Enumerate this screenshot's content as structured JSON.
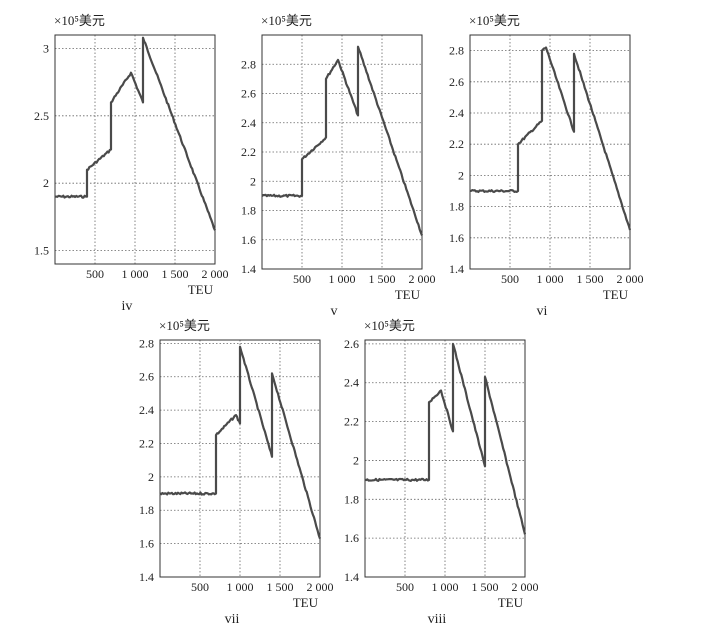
{
  "chart_data": [
    {
      "type": "line",
      "caption": "iv",
      "ylabel": "×10⁵美元",
      "xlabel": "TEU",
      "xlim": [
        0,
        2000
      ],
      "ylim": [
        1.4,
        3.1
      ],
      "xticks": [
        500,
        1000,
        1500,
        2000
      ],
      "xtick_labels": [
        "500",
        "1 000",
        "1 500",
        "2 000"
      ],
      "yticks": [
        1.5,
        2,
        2.5,
        3
      ],
      "ytick_labels": [
        "1.5",
        "2",
        "2.5",
        "3"
      ],
      "grid": true,
      "series": [
        {
          "x": [
            0,
            400,
            400,
            700,
            700,
            950,
            1100,
            1100,
            2000
          ],
          "y": [
            1.9,
            1.9,
            2.1,
            2.25,
            2.6,
            2.82,
            2.6,
            3.08,
            1.65
          ]
        }
      ]
    },
    {
      "type": "line",
      "caption": "v",
      "ylabel": "×10⁵美元",
      "xlabel": "TEU",
      "xlim": [
        0,
        2000
      ],
      "ylim": [
        1.4,
        3.0
      ],
      "xticks": [
        500,
        1000,
        1500,
        2000
      ],
      "xtick_labels": [
        "500",
        "1 000",
        "1 500",
        "2 000"
      ],
      "yticks": [
        1.4,
        1.6,
        1.8,
        2.0,
        2.2,
        2.4,
        2.6,
        2.8
      ],
      "ytick_labels": [
        "1.4",
        "1.6",
        "1.8",
        "2",
        "2.2",
        "2.4",
        "2.6",
        "2.8"
      ],
      "grid": true,
      "series": [
        {
          "x": [
            0,
            500,
            500,
            800,
            800,
            950,
            1200,
            1200,
            2000
          ],
          "y": [
            1.9,
            1.9,
            2.15,
            2.3,
            2.7,
            2.83,
            2.45,
            2.92,
            1.63
          ]
        }
      ]
    },
    {
      "type": "line",
      "caption": "vi",
      "ylabel": "×10⁵美元",
      "xlabel": "TEU",
      "xlim": [
        0,
        2000
      ],
      "ylim": [
        1.4,
        2.9
      ],
      "xticks": [
        500,
        1000,
        1500,
        2000
      ],
      "xtick_labels": [
        "500",
        "1 000",
        "1 500",
        "2 000"
      ],
      "yticks": [
        1.4,
        1.6,
        1.8,
        2.0,
        2.2,
        2.4,
        2.6,
        2.8
      ],
      "ytick_labels": [
        "1.4",
        "1.6",
        "1.8",
        "2",
        "2.2",
        "2.4",
        "2.6",
        "2.8"
      ],
      "grid": true,
      "series": [
        {
          "x": [
            0,
            600,
            600,
            900,
            900,
            950,
            1300,
            1300,
            2000
          ],
          "y": [
            1.9,
            1.9,
            2.2,
            2.35,
            2.8,
            2.82,
            2.28,
            2.78,
            1.65
          ]
        }
      ]
    },
    {
      "type": "line",
      "caption": "vii",
      "ylabel": "×10⁵美元",
      "xlabel": "TEU",
      "xlim": [
        0,
        2000
      ],
      "ylim": [
        1.4,
        2.82
      ],
      "xticks": [
        500,
        1000,
        1500,
        2000
      ],
      "xtick_labels": [
        "500",
        "1 000",
        "1 500",
        "2 000"
      ],
      "yticks": [
        1.4,
        1.6,
        1.8,
        2.0,
        2.2,
        2.4,
        2.6,
        2.8
      ],
      "ytick_labels": [
        "1.4",
        "1.6",
        "1.8",
        "2",
        "2.2",
        "2.4",
        "2.6",
        "2.8"
      ],
      "grid": true,
      "series": [
        {
          "x": [
            0,
            700,
            700,
            950,
            1000,
            1000,
            1400,
            1400,
            2000
          ],
          "y": [
            1.9,
            1.9,
            2.25,
            2.37,
            2.32,
            2.78,
            2.12,
            2.62,
            1.63
          ]
        }
      ]
    },
    {
      "type": "line",
      "caption": "viii",
      "ylabel": "×10⁵美元",
      "xlabel": "TEU",
      "xlim": [
        0,
        2000
      ],
      "ylim": [
        1.4,
        2.62
      ],
      "xticks": [
        500,
        1000,
        1500,
        2000
      ],
      "xtick_labels": [
        "500",
        "1 000",
        "1 500",
        "2 000"
      ],
      "yticks": [
        1.4,
        1.6,
        1.8,
        2.0,
        2.2,
        2.4,
        2.6
      ],
      "ytick_labels": [
        "1.4",
        "1.6",
        "1.8",
        "2",
        "2.2",
        "2.4",
        "2.6"
      ],
      "grid": true,
      "series": [
        {
          "x": [
            0,
            800,
            800,
            950,
            1100,
            1100,
            1500,
            1500,
            2000
          ],
          "y": [
            1.9,
            1.9,
            2.3,
            2.36,
            2.15,
            2.6,
            1.97,
            2.43,
            1.62
          ]
        }
      ]
    }
  ]
}
